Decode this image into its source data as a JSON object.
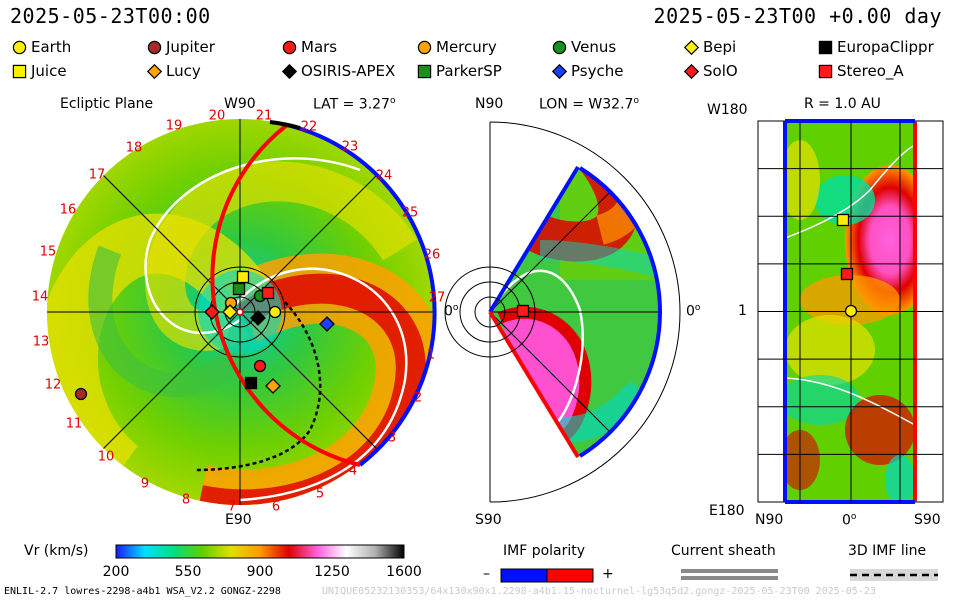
{
  "header": {
    "left_timestamp": "2025-05-23T00:00",
    "right_timestamp": "2025-05-23T00 +0.00 day"
  },
  "legend": [
    {
      "name": "Earth",
      "shape": "circle",
      "color": "#ffee00"
    },
    {
      "name": "Jupiter",
      "shape": "circle",
      "color": "#a52a2a"
    },
    {
      "name": "Mars",
      "shape": "circle",
      "color": "#ff1a1a"
    },
    {
      "name": "Mercury",
      "shape": "circle",
      "color": "#ffa500"
    },
    {
      "name": "Venus",
      "shape": "circle",
      "color": "#1a8f1a"
    },
    {
      "name": "Bepi",
      "shape": "diamond",
      "color": "#ffee00"
    },
    {
      "name": "EuropaClippr",
      "shape": "square",
      "color": "#000000"
    },
    {
      "name": "Juice",
      "shape": "square",
      "color": "#ffee00"
    },
    {
      "name": "Lucy",
      "shape": "diamond",
      "color": "#ffa500"
    },
    {
      "name": "OSIRIS-APEX",
      "shape": "diamond",
      "color": "#000000"
    },
    {
      "name": "ParkerSP",
      "shape": "square",
      "color": "#1a8f1a"
    },
    {
      "name": "Psyche",
      "shape": "diamond",
      "color": "#1a3fff"
    },
    {
      "name": "SolO",
      "shape": "diamond",
      "color": "#ff1a1a"
    },
    {
      "name": "Stereo_A",
      "shape": "square",
      "color": "#ff1a1a"
    }
  ],
  "panels": {
    "ecliptic": {
      "title": "Ecliptic Plane",
      "top_label": "W90",
      "lat_label": "LAT = 3.27",
      "bottom_label": "E90",
      "right_label": "0"
    },
    "meridional": {
      "top_label": "N90",
      "lon_label": "LON = W32.7",
      "bottom_label": "S90",
      "right_label": "0"
    },
    "radius": {
      "top_left_label": "W180",
      "r_label": "R = 1.0 AU",
      "bottom_left_label": "E180",
      "mid_label": "1",
      "x_labels": [
        "N90",
        "0",
        "S90"
      ]
    }
  },
  "ring_numbers": [
    "20",
    "21",
    "22",
    "23",
    "24",
    "25",
    "26",
    "27",
    "1",
    "2",
    "3",
    "4",
    "5",
    "6",
    "7",
    "8",
    "9",
    "10",
    "11",
    "12",
    "13",
    "14",
    "15",
    "16",
    "17",
    "18",
    "19"
  ],
  "colorbar": {
    "label": "Vr (km/s)",
    "ticks": [
      "200",
      "550",
      "900",
      "1250",
      "1600"
    ],
    "stops": [
      "#1a1aff",
      "#00e0ff",
      "#00e080",
      "#60d000",
      "#e0e000",
      "#ff9a00",
      "#e00000",
      "#ff60e0",
      "#ffffff",
      "#b0b0b0",
      "#000000"
    ]
  },
  "imf": {
    "label": "IMF polarity",
    "minus": "–",
    "plus": "+",
    "neg_color": "#0010ff",
    "pos_color": "#ff0000"
  },
  "sheath_label": "Current sheath",
  "imf_line_label": "3D IMF line",
  "footer_left": "ENLIL-2.7 lowres-2298-a4b1 WSA_V2.2 GONGZ-2298",
  "footer_right": "UNIQUE05232130353/64x130x90x1.2298-a4b1.15-nocturnel-lg53q5d2.gongz-2025-05-23T00  2025-05-23"
}
